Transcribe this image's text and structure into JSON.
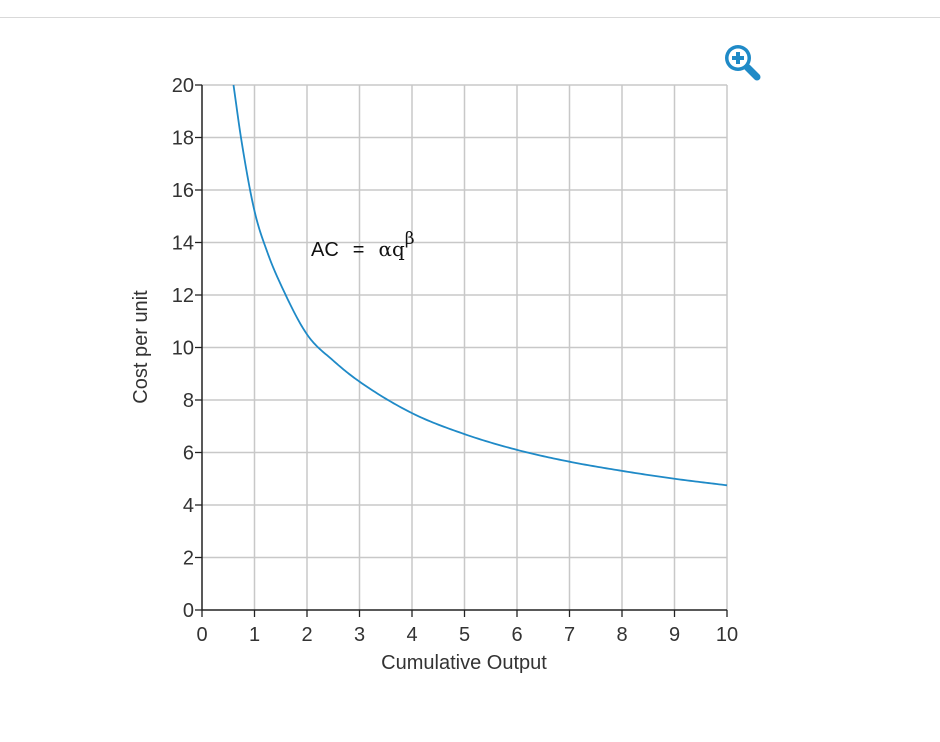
{
  "zoom_icon": "zoom-in-icon",
  "colors": {
    "curve": "#1f8ac7",
    "grid": "#c8c8c8",
    "axis": "#222222",
    "accent": "#1f8ac7"
  },
  "chart_data": {
    "type": "line",
    "xlabel": "Cumulative Output",
    "ylabel": "Cost per unit",
    "xlim": [
      0,
      10
    ],
    "ylim": [
      0,
      20
    ],
    "x_ticks": [
      "0",
      "1",
      "2",
      "3",
      "4",
      "5",
      "6",
      "7",
      "8",
      "9",
      "10"
    ],
    "y_ticks": [
      "0",
      "2",
      "4",
      "6",
      "8",
      "10",
      "12",
      "14",
      "16",
      "18",
      "20"
    ],
    "grid": true,
    "annotation": {
      "lhs": "AC",
      "equals": "=",
      "coefficient": "αq",
      "exponent": "β"
    },
    "series": [
      {
        "x": [
          0.6,
          0.75,
          1,
          1.25,
          1.5,
          2,
          2.5,
          3,
          4,
          5,
          6,
          7,
          8,
          9,
          10
        ],
        "y": [
          20.0,
          17.9,
          15.2,
          13.6,
          12.4,
          10.5,
          9.5,
          8.7,
          7.5,
          6.7,
          6.1,
          5.65,
          5.3,
          5.0,
          4.75
        ]
      }
    ]
  }
}
